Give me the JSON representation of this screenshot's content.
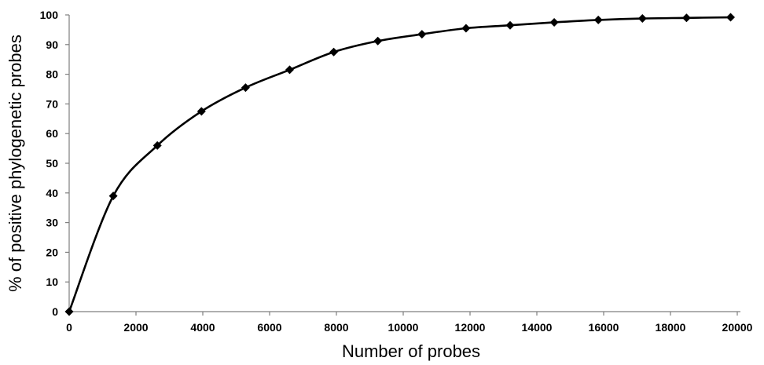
{
  "chart_data": {
    "type": "line",
    "title": "",
    "xlabel": "Number of probes",
    "ylabel": "% of positive phylogenetic probes",
    "xlim": [
      0,
      20000
    ],
    "ylim": [
      0,
      100
    ],
    "x_ticks": [
      0,
      2000,
      4000,
      6000,
      8000,
      10000,
      12000,
      14000,
      16000,
      18000,
      20000
    ],
    "y_ticks": [
      0,
      10,
      20,
      30,
      40,
      50,
      60,
      70,
      80,
      90,
      100
    ],
    "grid": false,
    "legend": "none",
    "marker": "diamond",
    "line_color": "#000000",
    "series": [
      {
        "x": [
          0,
          1320,
          2640,
          3960,
          5280,
          6600,
          7920,
          9240,
          10560,
          11880,
          13200,
          14520,
          15840,
          17160,
          18480,
          19800
        ],
        "y": [
          0,
          39,
          56,
          67.5,
          75.5,
          81.5,
          87.5,
          91.2,
          93.5,
          95.5,
          96.5,
          97.5,
          98.3,
          98.8,
          99.0,
          99.2
        ]
      }
    ]
  }
}
